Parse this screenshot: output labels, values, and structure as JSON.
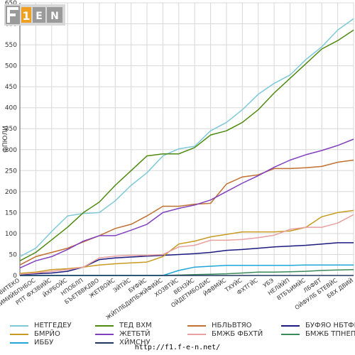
{
  "logo": {
    "text": "F1EN"
  },
  "footer": {
    "url": "http://f1.f-e-n.net/"
  },
  "chart_data": {
    "type": "line",
    "ylabel": "ФПЮЛИ",
    "xlabel": "",
    "ylim": [
      0,
      650
    ],
    "yticks": [
      0,
      50,
      100,
      150,
      200,
      250,
      300,
      350,
      400,
      450,
      500,
      550,
      600,
      650
    ],
    "grid": true,
    "categories": [
      "ВВИТЕКО",
      "ЕНИМИЙБПНБОС",
      "РПТ ФХЗВИЙС",
      "ЙХРБОЙС",
      "НПОБЛП",
      "БЪЕТВВКДВО",
      "ЖЕТВОЙС",
      "ЭЙТЙС",
      "БУФЙС",
      "ЖЙПЛБДИПБЖЙФИЙС",
      "ХОЗВТЙС",
      "ВЕНЗЙС",
      "ОЙДЕТМБОДИС",
      "ЙФВМЙС",
      "ТХУЙС",
      "ФХТГЙС",
      "УБЭ",
      "НЕЛЙЙП",
      "ВТБЪИМЙС",
      "ЛБФВТ",
      "ОЙФУЛБ БТЕВЙС",
      "БВХ ДВИЙ"
    ],
    "series": [
      {
        "name": "НЕТГЕДЕУ",
        "color": "#7ec8d8",
        "values": [
          45,
          65,
          105,
          142,
          148,
          150,
          178,
          215,
          245,
          285,
          302,
          308,
          345,
          365,
          395,
          432,
          458,
          478,
          515,
          545,
          585,
          612
        ]
      },
      {
        "name": "ТЕД ВХМ",
        "color": "#4f8a10",
        "values": [
          35,
          55,
          85,
          115,
          150,
          175,
          215,
          250,
          285,
          290,
          290,
          305,
          335,
          345,
          365,
          395,
          435,
          470,
          505,
          540,
          560,
          585
        ]
      },
      {
        "name": "НБЛЬВТЯО",
        "color": "#c07030",
        "values": [
          25,
          45,
          55,
          65,
          80,
          95,
          112,
          122,
          142,
          165,
          165,
          170,
          172,
          218,
          235,
          240,
          255,
          255,
          257,
          260,
          270,
          275
        ]
      },
      {
        "name": "БУФЯО НБТФЙО",
        "color": "#1a1a80",
        "values": [
          2,
          4,
          6,
          10,
          20,
          38,
          42,
          44,
          46,
          48,
          50,
          52,
          55,
          60,
          62,
          65,
          68,
          70,
          72,
          75,
          78,
          78
        ]
      },
      {
        "name": "БМРЙО",
        "color": "#c89a20",
        "values": [
          5,
          8,
          14,
          16,
          20,
          25,
          28,
          30,
          32,
          45,
          75,
          82,
          92,
          98,
          104,
          104,
          104,
          106,
          115,
          140,
          150,
          155
        ]
      },
      {
        "name": "ЖЕТБТЙ",
        "color": "#8040c0",
        "values": [
          18,
          35,
          45,
          62,
          82,
          95,
          95,
          108,
          122,
          150,
          160,
          168,
          180,
          200,
          220,
          238,
          258,
          275,
          288,
          298,
          310,
          325
        ]
      },
      {
        "name": "БМЖБ ФБХТЙ",
        "color": "#e8a0a0",
        "values": [
          3,
          6,
          10,
          14,
          20,
          42,
          46,
          48,
          48,
          50,
          68,
          72,
          84,
          84,
          86,
          90,
          96,
          110,
          115,
          115,
          125,
          145
        ]
      },
      {
        "name": "БМЖБ ТПНЕП",
        "color": "#3a8a5a",
        "values": [
          0,
          0,
          0,
          0,
          0,
          0,
          0,
          0,
          0,
          0,
          1,
          2,
          3,
          4,
          6,
          8,
          8,
          9,
          10,
          12,
          13,
          14
        ]
      },
      {
        "name": "ИББУ",
        "color": "#1fa6d8",
        "values": [
          0,
          0,
          0,
          0,
          0,
          0,
          0,
          0,
          0,
          0,
          12,
          20,
          22,
          24,
          24,
          24,
          24,
          24,
          25,
          25,
          25,
          25
        ]
      },
      {
        "name": "ХЙМСНУ",
        "color": "#203860",
        "values": [
          0,
          0,
          0,
          0,
          0,
          0,
          0,
          0,
          0,
          0,
          0,
          0,
          0,
          0,
          0,
          0,
          0,
          0,
          0,
          0,
          0,
          0
        ]
      }
    ]
  }
}
